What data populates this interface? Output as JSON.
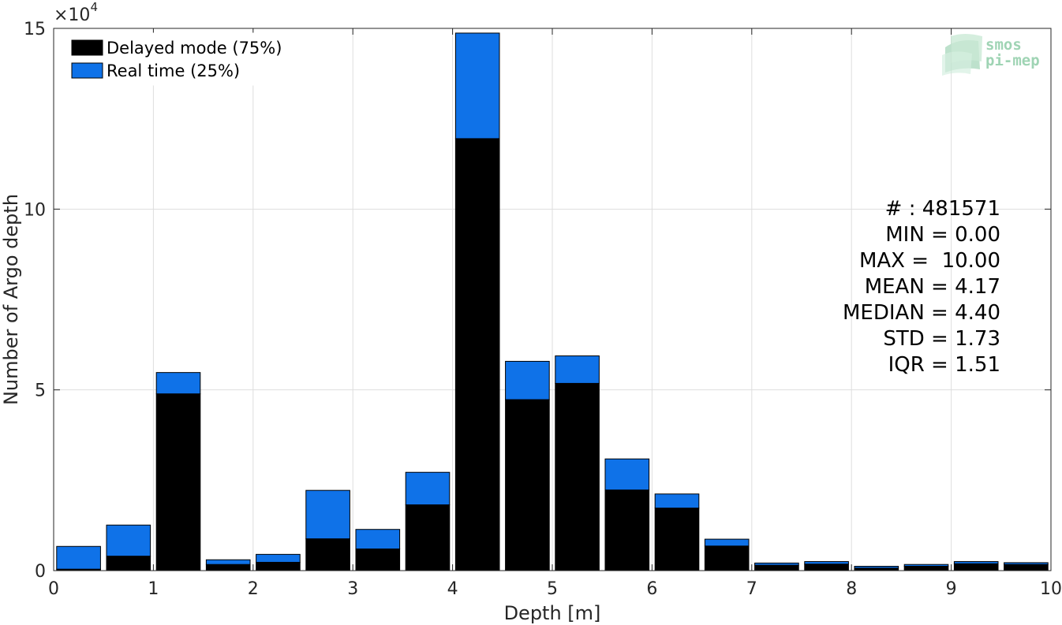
{
  "chart_data": {
    "type": "bar",
    "stacked": true,
    "bin_width": 0.5,
    "x": [
      0.25,
      0.75,
      1.25,
      1.75,
      2.25,
      2.75,
      3.25,
      3.75,
      4.25,
      4.75,
      5.25,
      5.75,
      6.25,
      6.75,
      7.25,
      7.75,
      8.25,
      8.75,
      9.25,
      9.75
    ],
    "series": [
      {
        "name": "Delayed mode (75%)",
        "color": "#000000",
        "values": [
          400,
          4000,
          48900,
          1700,
          2300,
          8800,
          6000,
          18200,
          119500,
          47300,
          51800,
          22300,
          17300,
          6800,
          1500,
          1800,
          700,
          1200,
          1900,
          1700
        ]
      },
      {
        "name": "Real time (25%)",
        "color": "#0f72e8",
        "values": [
          6300,
          8600,
          5900,
          1300,
          2200,
          13400,
          5400,
          9000,
          29200,
          10600,
          7600,
          8600,
          3900,
          1900,
          600,
          700,
          500,
          500,
          600,
          500
        ]
      }
    ],
    "xlabel": "Depth [m]",
    "ylabel": "Number of Argo depth",
    "xlim": [
      0,
      10
    ],
    "ylim": [
      0,
      150000
    ],
    "xticks": [
      "0",
      "1",
      "2",
      "3",
      "4",
      "5",
      "6",
      "7",
      "8",
      "9",
      "10"
    ],
    "yticks": [
      "0",
      "5",
      "10",
      "15"
    ],
    "y_multiplier": "×10",
    "y_multiplier_exp": "4",
    "grid": true,
    "legend_position": "top-left",
    "stats": [
      "# : 481571",
      "MIN = 0.00",
      "MAX =  10.00",
      "MEAN = 4.17",
      "MEDIAN = 4.40",
      "STD = 1.73",
      "IQR = 1.51"
    ]
  },
  "logo": {
    "line1": "smos",
    "line2": "pi-mep",
    "color": "#9fd4b4"
  }
}
